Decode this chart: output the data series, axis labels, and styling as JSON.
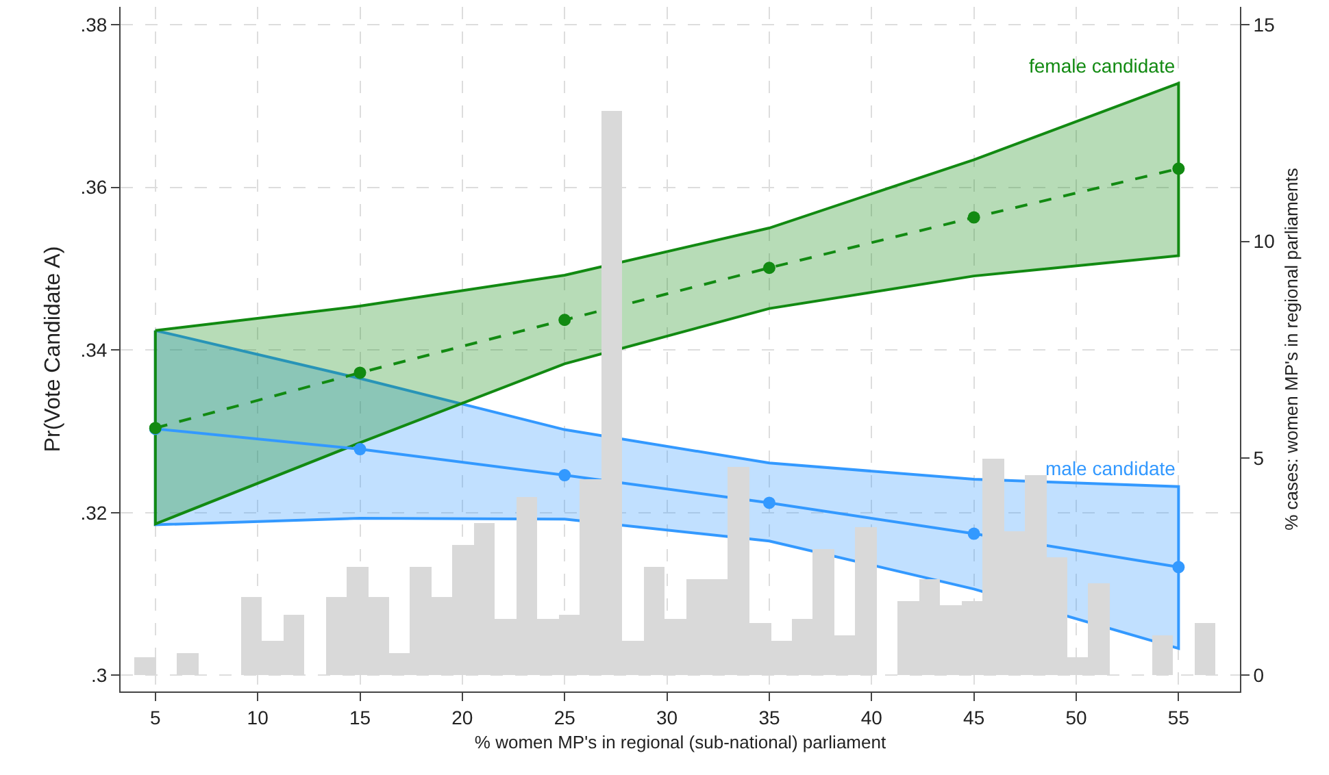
{
  "chart_data": {
    "type": "line",
    "xlabel": "% women MP's in regional (sub-national) parliament",
    "ylabel": "Pr(Vote Candidate A)",
    "y2label": "% cases: women MP's in regional parliaments",
    "x": [
      5,
      15,
      25,
      35,
      45,
      55
    ],
    "xlim": [
      3.3,
      58
    ],
    "xticks": [
      5,
      10,
      15,
      20,
      25,
      30,
      35,
      40,
      45,
      50,
      55
    ],
    "ylim": [
      0.298,
      0.3822
    ],
    "yticks": [
      {
        "value": 0.3,
        "label": ".3"
      },
      {
        "value": 0.32,
        "label": ".32"
      },
      {
        "value": 0.34,
        "label": ".34"
      },
      {
        "value": 0.36,
        "label": ".36"
      },
      {
        "value": 0.38,
        "label": ".38"
      }
    ],
    "y2lim": [
      -0.38,
      15.41
    ],
    "y2ticks": [
      0,
      5,
      10,
      15
    ],
    "grid": true,
    "legend": false,
    "marker": "circle",
    "series": [
      {
        "type": "histogram",
        "axis": "y2",
        "color": "#d9d9d9",
        "bins": [
          4.0,
          5.04,
          6.07,
          7.11,
          8.14,
          9.18,
          10.21,
          11.25,
          12.28,
          13.32,
          14.36,
          15.39,
          16.43,
          17.46,
          18.5,
          19.53,
          20.57,
          21.6,
          22.64,
          23.67,
          24.71,
          25.75,
          26.78,
          27.82,
          28.85,
          29.89,
          30.92,
          31.96,
          32.99,
          34.03,
          35.07,
          36.1,
          37.14,
          38.17,
          39.21,
          40.24,
          41.28,
          42.31,
          43.35,
          44.38,
          45.42,
          46.46,
          47.49,
          48.53,
          49.56,
          50.6,
          51.63,
          52.67,
          53.7,
          54.74,
          55.78,
          56.81
        ],
        "values": [
          0.4,
          0,
          0.5,
          0,
          0,
          1.8,
          0.8,
          1.4,
          0,
          1.8,
          2.5,
          1.8,
          0.5,
          2.5,
          1.8,
          3.0,
          3.5,
          1.3,
          4.1,
          1.3,
          1.4,
          4.5,
          13.0,
          0.8,
          2.5,
          1.3,
          2.2,
          2.2,
          4.8,
          1.2,
          0.8,
          1.3,
          2.9,
          0.9,
          3.4,
          0,
          1.7,
          2.2,
          1.6,
          1.7,
          5.0,
          3.3,
          4.6,
          2.7,
          0.4,
          2.1,
          0,
          0,
          0.9,
          0,
          1.2
        ]
      },
      {
        "name": "male candidate",
        "color": "#3399ff",
        "line_style": "solid",
        "values": [
          0.3303,
          0.3278,
          0.3246,
          0.3212,
          0.3174,
          0.3133
        ],
        "lower": [
          0.3185,
          0.3193,
          0.3192,
          0.3165,
          0.3106,
          0.3033
        ],
        "upper": [
          0.3424,
          0.3365,
          0.3302,
          0.3261,
          0.3241,
          0.3232
        ]
      },
      {
        "name": "female candidate",
        "color": "#128a12",
        "line_style": "dashed",
        "values": [
          0.3304,
          0.3372,
          0.3437,
          0.3501,
          0.3563,
          0.3623
        ],
        "lower": [
          0.3186,
          0.3286,
          0.3383,
          0.3451,
          0.3491,
          0.3516
        ],
        "upper": [
          0.3424,
          0.3454,
          0.3492,
          0.355,
          0.3634,
          0.3728
        ]
      }
    ]
  }
}
